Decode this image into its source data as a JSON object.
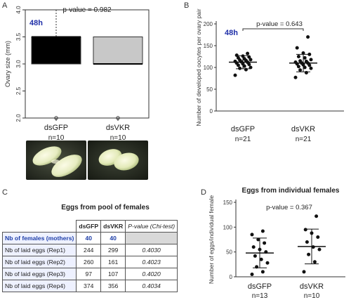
{
  "panels": {
    "a": "A",
    "b": "B",
    "c": "C",
    "d": "D"
  },
  "colors": {
    "dark": "#000000",
    "gray": "#c8c8c8",
    "blue": "#1f2fa8"
  },
  "chart_data": [
    {
      "id": "A",
      "type": "box",
      "title": "",
      "pvalue": "p-value = 0.982",
      "tag": "48h",
      "ylabel": "Ovary size (mm)",
      "ylim": [
        2.0,
        4.0
      ],
      "yticks": [
        "2.0",
        "2.5",
        "3.0",
        "3.5",
        "4.0"
      ],
      "categories": [
        "dsGFP",
        "dsVKR"
      ],
      "counts": [
        "n=10",
        "n=10"
      ],
      "boxes": [
        {
          "name": "dsGFP",
          "q1": 3.0,
          "median": 3.5,
          "q3": 3.5,
          "whisker_low": 3.0,
          "whisker_high": 4.0,
          "outliers": [
            2.0
          ]
        },
        {
          "name": "dsVKR",
          "q1": 3.0,
          "median": 3.0,
          "q3": 3.5,
          "whisker_low": 3.0,
          "whisker_high": 3.5,
          "outliers": [
            2.0
          ]
        }
      ]
    },
    {
      "id": "B",
      "type": "scatter",
      "title": "",
      "pvalue": "p-value = 0.643",
      "tag": "48h",
      "ylabel": "Number of developed oocytes per ovary pair",
      "ylim": [
        0,
        200
      ],
      "yticks": [
        "0",
        "50",
        "100",
        "150",
        "200"
      ],
      "categories": [
        "dsGFP",
        "dsVKR"
      ],
      "counts": [
        "n=21",
        "n=21"
      ],
      "series": [
        {
          "name": "dsGFP",
          "mean": 112,
          "sd": 15,
          "values": [
            82,
            95,
            98,
            100,
            103,
            105,
            107,
            108,
            110,
            112,
            113,
            114,
            116,
            117,
            118,
            120,
            122,
            124,
            126,
            128,
            132
          ]
        },
        {
          "name": "dsVKR",
          "mean": 110,
          "sd": 20,
          "values": [
            77,
            88,
            94,
            98,
            100,
            102,
            105,
            106,
            108,
            110,
            110,
            112,
            114,
            115,
            118,
            122,
            125,
            130,
            133,
            145,
            170
          ]
        }
      ]
    },
    {
      "id": "D",
      "type": "scatter",
      "title": "Eggs from individual females",
      "pvalue": "p-value = 0.367",
      "tag": "",
      "ylabel": "Number of eggs/individual female",
      "ylim": [
        0,
        150
      ],
      "yticks": [
        "0",
        "50",
        "100",
        "150"
      ],
      "categories": [
        "dsGFP",
        "dsVKR"
      ],
      "counts": [
        "n=13",
        "n=10"
      ],
      "series": [
        {
          "name": "dsGFP",
          "mean": 48,
          "sd": 30,
          "values": [
            5,
            10,
            20,
            28,
            35,
            42,
            50,
            55,
            60,
            68,
            75,
            85,
            92
          ]
        },
        {
          "name": "dsVKR",
          "mean": 61,
          "sd": 35,
          "values": [
            10,
            30,
            45,
            55,
            60,
            70,
            80,
            88,
            95,
            122
          ]
        }
      ]
    }
  ],
  "table": {
    "title": "Eggs from pool of females",
    "header": [
      "",
      "dsGFP",
      "dsVKR",
      "P-value (Chi-test)"
    ],
    "first_row": {
      "label": "Nb of females (mothers)",
      "dsgfp": "40",
      "dsvkr": "40"
    },
    "rows": [
      {
        "label": "Nb of laid eggs (Rep1)",
        "dsgfp": "244",
        "dsvkr": "299",
        "pvalue": "0.4030"
      },
      {
        "label": "Nb of laid eggs (Rep2)",
        "dsgfp": "260",
        "dsvkr": "161",
        "pvalue": "0.4023"
      },
      {
        "label": "Nb of laid eggs (Rep3)",
        "dsgfp": "97",
        "dsvkr": "107",
        "pvalue": "0.4020"
      },
      {
        "label": "Nb of laid eggs (Rep4)",
        "dsgfp": "374",
        "dsvkr": "356",
        "pvalue": "0.4034"
      }
    ]
  }
}
